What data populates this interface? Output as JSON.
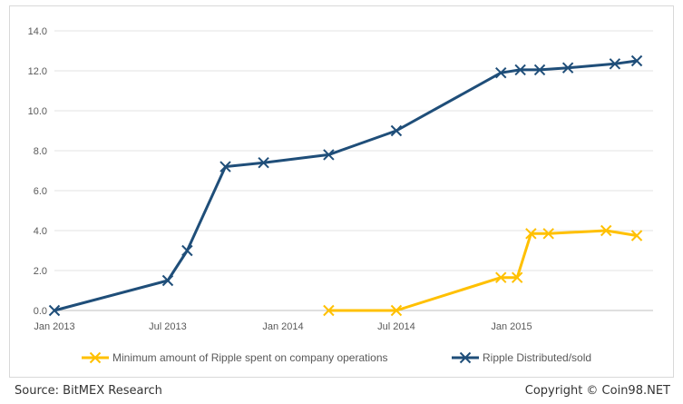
{
  "chart_data": {
    "type": "line",
    "x_ticks": [
      "Jan 2013",
      "Jul 2013",
      "Jan 2014",
      "Jul 2014",
      "Jan 2015"
    ],
    "y_ticks": [
      "0.0",
      "2.0",
      "4.0",
      "6.0",
      "8.0",
      "10.0",
      "12.0",
      "14.0"
    ],
    "ylim": [
      0,
      14
    ],
    "xlim": [
      "2013-01-01",
      "2015-08-15"
    ],
    "grid": "horizontal",
    "legend_position": "bottom",
    "series": [
      {
        "name": "Minimum amount of Ripple spent on company operations",
        "color": "#ffc000",
        "marker": "x",
        "points": [
          {
            "x": "2014-03-15",
            "y": 0.0
          },
          {
            "x": "2014-07-01",
            "y": 0.0
          },
          {
            "x": "2014-12-15",
            "y": 1.65
          },
          {
            "x": "2015-01-10",
            "y": 1.65
          },
          {
            "x": "2015-02-01",
            "y": 3.85
          },
          {
            "x": "2015-03-01",
            "y": 3.85
          },
          {
            "x": "2015-06-01",
            "y": 4.0
          },
          {
            "x": "2015-07-20",
            "y": 3.75
          }
        ]
      },
      {
        "name": "Ripple Distributed/sold",
        "color": "#1f4e79",
        "marker": "x",
        "points": [
          {
            "x": "2013-01-01",
            "y": 0.0
          },
          {
            "x": "2013-07-01",
            "y": 1.5
          },
          {
            "x": "2013-08-01",
            "y": 3.0
          },
          {
            "x": "2013-10-01",
            "y": 7.2
          },
          {
            "x": "2013-12-01",
            "y": 7.4
          },
          {
            "x": "2014-03-15",
            "y": 7.8
          },
          {
            "x": "2014-07-01",
            "y": 9.0
          },
          {
            "x": "2014-12-15",
            "y": 11.9
          },
          {
            "x": "2015-01-15",
            "y": 12.05
          },
          {
            "x": "2015-02-15",
            "y": 12.05
          },
          {
            "x": "2015-04-01",
            "y": 12.15
          },
          {
            "x": "2015-06-15",
            "y": 12.35
          },
          {
            "x": "2015-07-20",
            "y": 12.5
          }
        ]
      }
    ]
  },
  "footer": {
    "source": "Source: BitMEX Research",
    "copyright": "Copyright © Coin98.NET"
  }
}
